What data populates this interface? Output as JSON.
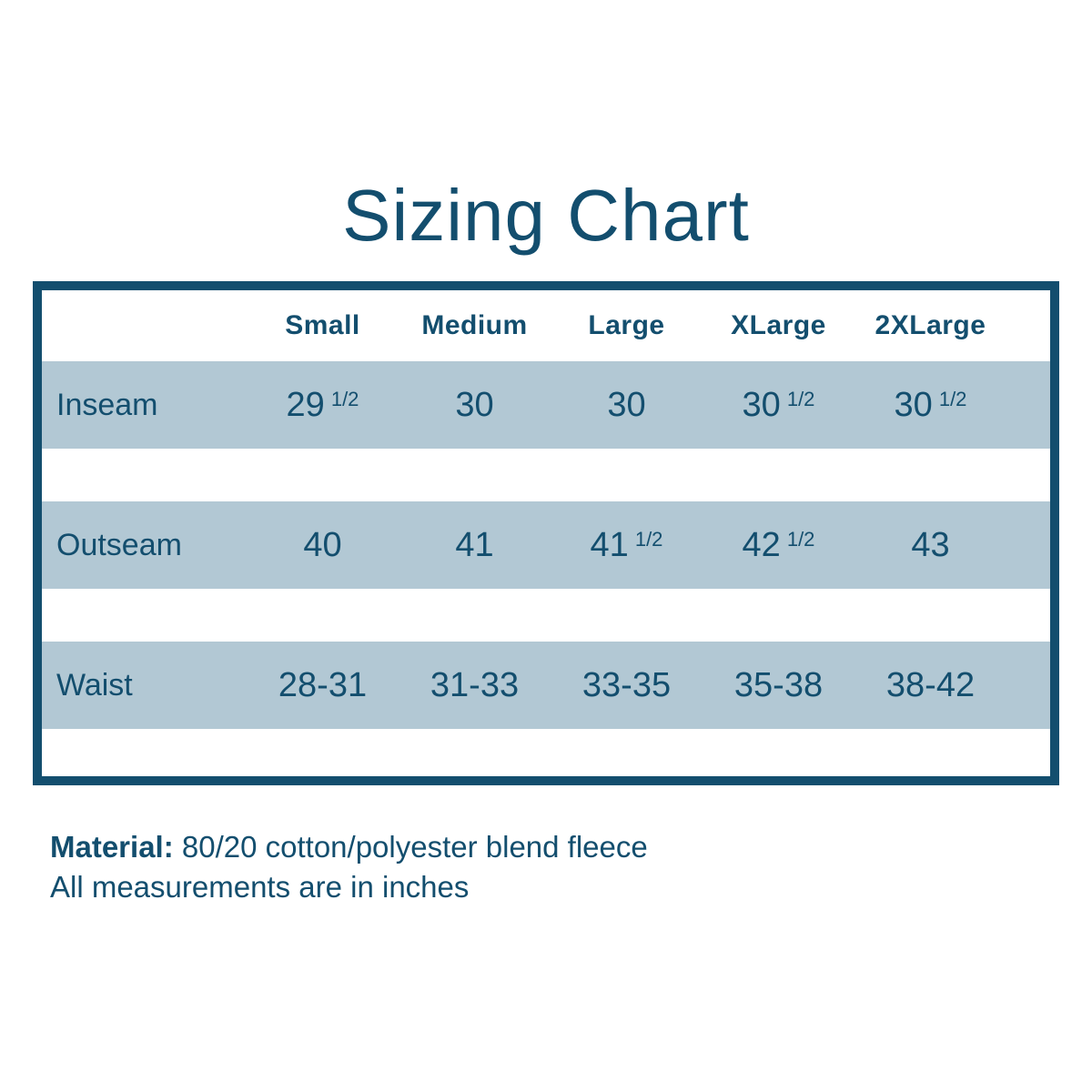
{
  "title": "Sizing Chart",
  "colors": {
    "accent": "#134e6e",
    "stripe": "#b2c8d4",
    "background": "#ffffff"
  },
  "table": {
    "columns": [
      "Small",
      "Medium",
      "Large",
      "XLarge",
      "2XLarge"
    ],
    "rows": [
      {
        "label": "Inseam",
        "cells": [
          {
            "base": "29",
            "frac": "1/2"
          },
          {
            "base": "30",
            "frac": ""
          },
          {
            "base": "30",
            "frac": ""
          },
          {
            "base": "30",
            "frac": "1/2"
          },
          {
            "base": "30",
            "frac": "1/2"
          }
        ]
      },
      {
        "label": "Outseam",
        "cells": [
          {
            "base": "40",
            "frac": ""
          },
          {
            "base": "41",
            "frac": ""
          },
          {
            "base": "41",
            "frac": "1/2"
          },
          {
            "base": "42",
            "frac": "1/2"
          },
          {
            "base": "43",
            "frac": ""
          }
        ]
      },
      {
        "label": "Waist",
        "cells": [
          {
            "base": "28-31",
            "frac": ""
          },
          {
            "base": "31-33",
            "frac": ""
          },
          {
            "base": "33-35",
            "frac": ""
          },
          {
            "base": "35-38",
            "frac": ""
          },
          {
            "base": "38-42",
            "frac": ""
          }
        ]
      }
    ]
  },
  "footer": {
    "material_label": "Material:",
    "material_value": "80/20 cotton/polyester blend fleece",
    "note": "All measurements are in inches"
  },
  "chart_data": {
    "type": "table",
    "title": "Sizing Chart",
    "columns": [
      "Small",
      "Medium",
      "Large",
      "XLarge",
      "2XLarge"
    ],
    "rows": [
      {
        "label": "Inseam",
        "values": [
          "29 1/2",
          "30",
          "30",
          "30 1/2",
          "30 1/2"
        ]
      },
      {
        "label": "Outseam",
        "values": [
          "40",
          "41",
          "41 1/2",
          "42 1/2",
          "43"
        ]
      },
      {
        "label": "Waist",
        "values": [
          "28-31",
          "31-33",
          "33-35",
          "35-38",
          "38-42"
        ]
      }
    ],
    "notes": [
      "Material: 80/20 cotton/polyester blend fleece",
      "All measurements are in inches"
    ],
    "units": "inches"
  }
}
